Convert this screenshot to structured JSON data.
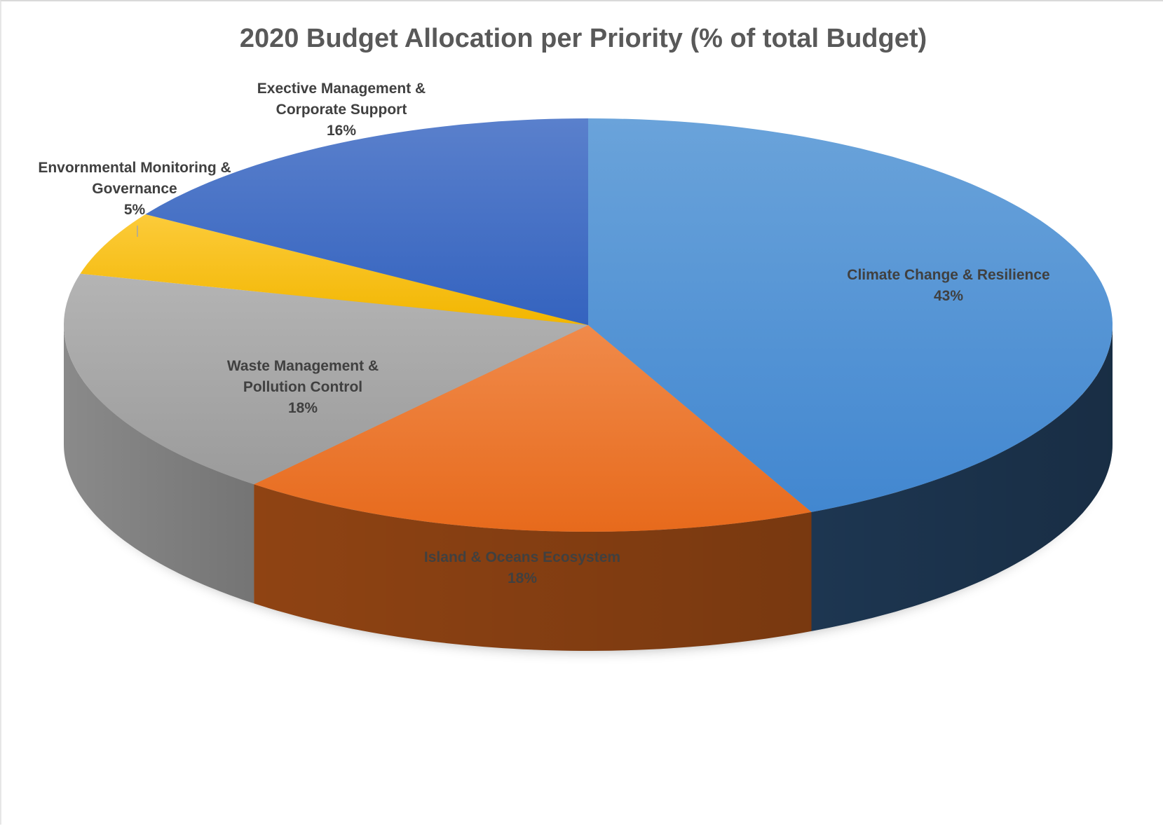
{
  "chart_data": {
    "type": "pie",
    "title": "2020 Budget Allocation per Priority (% of total Budget)",
    "style": "3d",
    "legend": "none",
    "series": [
      {
        "slices": [
          {
            "label": [
              "Climate Change & Resilience"
            ],
            "value": 43,
            "value_label": "43%",
            "color": "#4a8fd4",
            "side_color": "#1f3a58"
          },
          {
            "label": [
              "Island & Oceans Ecosystem"
            ],
            "value": 18,
            "value_label": "18%",
            "color": "#ee7526",
            "side_color": "#9a4712"
          },
          {
            "label": [
              "Waste Management &",
              "Pollution Control"
            ],
            "value": 18,
            "value_label": "18%",
            "color": "#a6a6a6",
            "side_color": "#7f7f7f"
          },
          {
            "label": [
              "Envornmental Monitoring &",
              "Governance"
            ],
            "value": 5,
            "value_label": "5%",
            "color": "#fcc00f",
            "side_color": "#a67c00"
          },
          {
            "label": [
              "Exective Management &",
              "Corporate Support"
            ],
            "value": 16,
            "value_label": "16%",
            "color": "#3f6cc7",
            "side_color": "#253f73"
          }
        ]
      }
    ]
  }
}
